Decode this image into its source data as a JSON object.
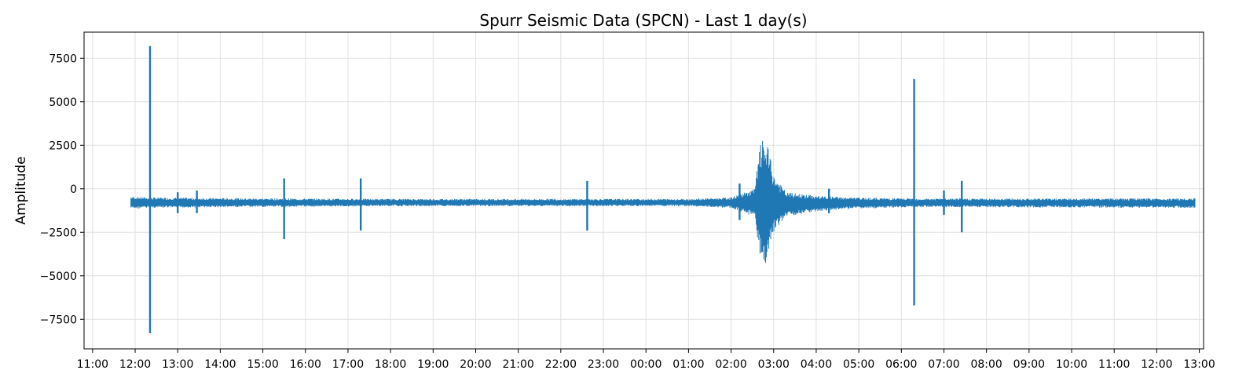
{
  "chart_data": {
    "type": "line",
    "title": "Spurr Seismic Data (SPCN) - Last 1 day(s)",
    "xlabel": "",
    "ylabel": "Amplitude",
    "grid": true,
    "ylim": [
      -9200,
      9000
    ],
    "y_ticks": [
      -7500,
      -5000,
      -2500,
      0,
      2500,
      5000,
      7500
    ],
    "y_tick_labels": [
      "−7500",
      "−5000",
      "−2500",
      "0",
      "2500",
      "5000",
      "7500"
    ],
    "x_ticks_hours": [
      0,
      1,
      2,
      3,
      4,
      5,
      6,
      7,
      8,
      9,
      10,
      11,
      12,
      13,
      14,
      15,
      16,
      17,
      18,
      19,
      20,
      21,
      22,
      23,
      24,
      25,
      26
    ],
    "x_tick_labels": [
      "11:00",
      "12:00",
      "13:00",
      "14:00",
      "15:00",
      "16:00",
      "17:00",
      "18:00",
      "19:00",
      "20:00",
      "21:00",
      "22:00",
      "23:00",
      "00:00",
      "01:00",
      "02:00",
      "03:00",
      "04:00",
      "05:00",
      "06:00",
      "07:00",
      "08:00",
      "09:00",
      "10:00",
      "11:00",
      "12:00",
      "13:00"
    ],
    "xlim_hours": [
      -0.2,
      26.1
    ],
    "series": [
      {
        "color": "#1f77b4",
        "start_hour": 0.9,
        "end_hour": 25.9,
        "baseline": -800,
        "envelope": [
          {
            "x": 0.9,
            "min": -1150,
            "max": -450
          },
          {
            "x": 1.35,
            "min": -1100,
            "max": -500
          },
          {
            "x": 3.8,
            "min": -1050,
            "max": -550
          },
          {
            "x": 7.0,
            "min": -1000,
            "max": -580
          },
          {
            "x": 10.5,
            "min": -1000,
            "max": -580
          },
          {
            "x": 14.0,
            "min": -1000,
            "max": -580
          },
          {
            "x": 15.0,
            "min": -1100,
            "max": -500
          },
          {
            "x": 15.55,
            "min": -1600,
            "max": 0
          },
          {
            "x": 15.7,
            "min": -4500,
            "max": 2800
          },
          {
            "x": 15.85,
            "min": -4200,
            "max": 2600
          },
          {
            "x": 16.0,
            "min": -2500,
            "max": 800
          },
          {
            "x": 16.3,
            "min": -1600,
            "max": -200
          },
          {
            "x": 17.0,
            "min": -1300,
            "max": -400
          },
          {
            "x": 17.8,
            "min": -1150,
            "max": -500
          },
          {
            "x": 19.5,
            "min": -1050,
            "max": -560
          },
          {
            "x": 25.9,
            "min": -1100,
            "max": -550
          }
        ],
        "spikes": [
          {
            "x": 1.35,
            "min": -8300,
            "max": 8200
          },
          {
            "x": 2.0,
            "min": -1400,
            "max": -200
          },
          {
            "x": 2.45,
            "min": -1400,
            "max": -100
          },
          {
            "x": 4.5,
            "min": -2900,
            "max": 600
          },
          {
            "x": 6.3,
            "min": -2400,
            "max": 600
          },
          {
            "x": 11.62,
            "min": -2400,
            "max": 450
          },
          {
            "x": 15.2,
            "min": -1800,
            "max": 300
          },
          {
            "x": 17.3,
            "min": -1400,
            "max": 0
          },
          {
            "x": 19.3,
            "min": -6700,
            "max": 6300
          },
          {
            "x": 20.0,
            "min": -1500,
            "max": -100
          },
          {
            "x": 20.42,
            "min": -2500,
            "max": 450
          }
        ]
      }
    ]
  }
}
